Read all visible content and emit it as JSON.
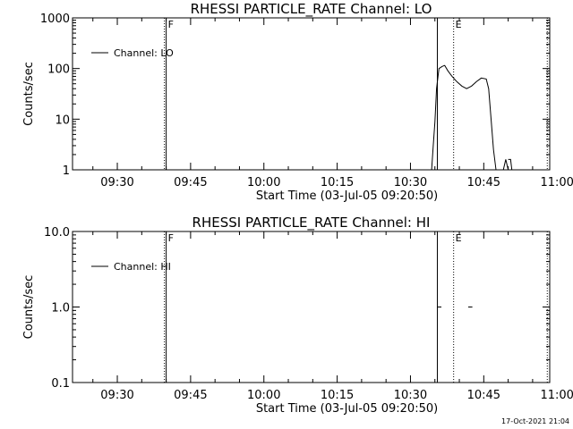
{
  "footer": {
    "timestamp": "17-Oct-2021 21:04"
  },
  "chart_data": [
    {
      "type": "line",
      "title": "RHESSI PARTICLE_RATE Channel: LO",
      "xlabel": "Start Time (03-Jul-05 09:20:50)",
      "ylabel": "Counts/sec",
      "y_scale": "log",
      "ylim": [
        1,
        1000
      ],
      "xlim": [
        "09:20:50",
        "10:58:30"
      ],
      "x_ticks": [
        "09:30",
        "09:45",
        "10:00",
        "10:15",
        "10:30",
        "10:45",
        "11:00"
      ],
      "y_ticks": [
        "1",
        "10",
        "100",
        "1000"
      ],
      "legend": {
        "placement": "top-left",
        "entries": [
          "Channel: LO"
        ]
      },
      "annotations": [
        {
          "time": "09:40:00",
          "label": "F",
          "style": "dotted+solid"
        },
        {
          "time": "10:35:30",
          "label": "",
          "style": "solid"
        },
        {
          "time": "10:38:50",
          "label": "E",
          "style": "dotted"
        },
        {
          "time": "10:58:00",
          "label": "",
          "style": "dotted"
        }
      ],
      "series": [
        {
          "name": "Channel: LO",
          "segments": [
            [
              [
                "10:34:20",
                1.0
              ],
              [
                "10:34:40",
                3.0
              ],
              [
                "10:35:00",
                9.0
              ],
              [
                "10:35:20",
                40.0
              ],
              [
                "10:35:50",
                100.0
              ],
              [
                "10:36:30",
                110.0
              ],
              [
                "10:37:00",
                115.0
              ],
              [
                "10:37:40",
                90.0
              ],
              [
                "10:38:30",
                70.0
              ],
              [
                "10:39:30",
                55.0
              ],
              [
                "10:40:30",
                45.0
              ],
              [
                "10:41:30",
                40.0
              ],
              [
                "10:42:30",
                45.0
              ],
              [
                "10:43:30",
                55.0
              ],
              [
                "10:44:30",
                65.0
              ],
              [
                "10:45:30",
                62.0
              ],
              [
                "10:46:00",
                40.0
              ],
              [
                "10:46:30",
                10.0
              ],
              [
                "10:47:00",
                2.5
              ],
              [
                "10:47:30",
                1.0
              ]
            ],
            [
              [
                "10:49:00",
                1.0
              ],
              [
                "10:49:30",
                1.6
              ],
              [
                "10:50:00",
                1.0
              ]
            ],
            [
              [
                "10:50:00",
                1.6
              ],
              [
                "10:50:30",
                1.6
              ],
              [
                "10:50:45",
                1.0
              ]
            ]
          ]
        }
      ]
    },
    {
      "type": "line",
      "title": "RHESSI PARTICLE_RATE Channel: HI",
      "xlabel": "Start Time (03-Jul-05 09:20:50)",
      "ylabel": "Counts/sec",
      "y_scale": "log",
      "ylim": [
        0.1,
        10
      ],
      "xlim": [
        "09:20:50",
        "10:58:30"
      ],
      "x_ticks": [
        "09:30",
        "09:45",
        "10:00",
        "10:15",
        "10:30",
        "10:45",
        "11:00"
      ],
      "y_ticks": [
        "0.1",
        "1.0",
        "10.0"
      ],
      "legend": {
        "placement": "top-left",
        "entries": [
          "Channel: HI"
        ]
      },
      "annotations": [
        {
          "time": "09:40:00",
          "label": "F",
          "style": "dotted+solid"
        },
        {
          "time": "10:35:30",
          "label": "",
          "style": "solid"
        },
        {
          "time": "10:38:50",
          "label": "E",
          "style": "dotted"
        },
        {
          "time": "10:58:00",
          "label": "",
          "style": "dotted"
        }
      ],
      "series": [
        {
          "name": "Channel: HI",
          "segments": [
            [
              [
                "10:35:30",
                1.0
              ],
              [
                "10:36:20",
                1.0
              ]
            ],
            [
              [
                "10:41:50",
                1.0
              ],
              [
                "10:42:40",
                1.0
              ]
            ]
          ]
        }
      ]
    }
  ]
}
